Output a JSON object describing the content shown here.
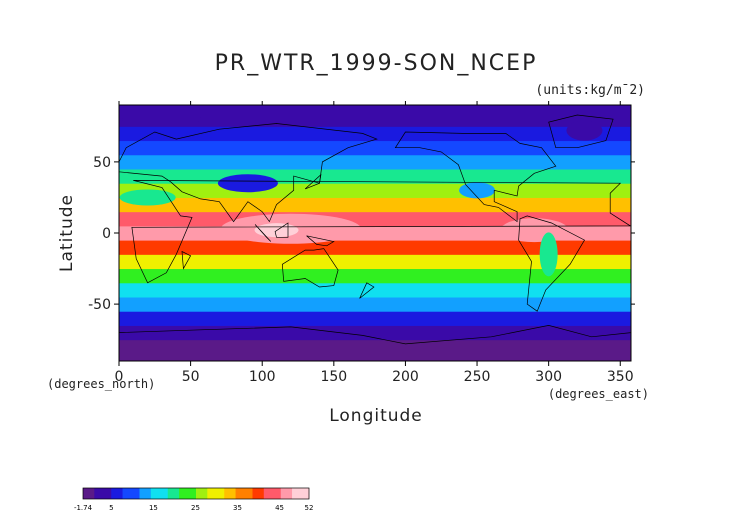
{
  "chart_data": {
    "type": "heatmap",
    "title": "PR_WTR_1999-SON_NCEP",
    "units": "(units:kg/m¯2)",
    "xlabel": "Longitude",
    "ylabel": "Latitude",
    "x_unit_label": "(degrees_east)",
    "y_unit_label": "(degrees_north)",
    "xlim": [
      0,
      357.5
    ],
    "ylim": [
      -90,
      90
    ],
    "x_ticks": [
      0,
      50,
      100,
      150,
      200,
      250,
      300,
      350
    ],
    "y_ticks": [
      -50,
      0,
      50
    ],
    "colorbar": {
      "min": -1.74,
      "max": 52,
      "tick_labels": [
        "-1.74",
        "5",
        "15",
        "25",
        "35",
        "45",
        "52"
      ],
      "colors": [
        "#5a1a88",
        "#3a0aa8",
        "#1a1ae0",
        "#1448ff",
        "#12a0ff",
        "#10e0f0",
        "#18e890",
        "#30f020",
        "#a0f010",
        "#f0f000",
        "#ffc000",
        "#ff8000",
        "#ff3a00",
        "#ff5a6a",
        "#ff9aaa",
        "#ffd0d8"
      ]
    },
    "latitude_profile": [
      {
        "lat": -90,
        "value": 0.5
      },
      {
        "lat": -75,
        "value": 2
      },
      {
        "lat": -65,
        "value": 6
      },
      {
        "lat": -55,
        "value": 10
      },
      {
        "lat": -45,
        "value": 15
      },
      {
        "lat": -35,
        "value": 20
      },
      {
        "lat": -25,
        "value": 27
      },
      {
        "lat": -15,
        "value": 34
      },
      {
        "lat": -5,
        "value": 44
      },
      {
        "lat": 5,
        "value": 47
      },
      {
        "lat": 15,
        "value": 40
      },
      {
        "lat": 25,
        "value": 30
      },
      {
        "lat": 35,
        "value": 22
      },
      {
        "lat": 45,
        "value": 16
      },
      {
        "lat": 55,
        "value": 11
      },
      {
        "lat": 65,
        "value": 8
      },
      {
        "lat": 75,
        "value": 4
      },
      {
        "lat": 90,
        "value": 2
      }
    ]
  }
}
